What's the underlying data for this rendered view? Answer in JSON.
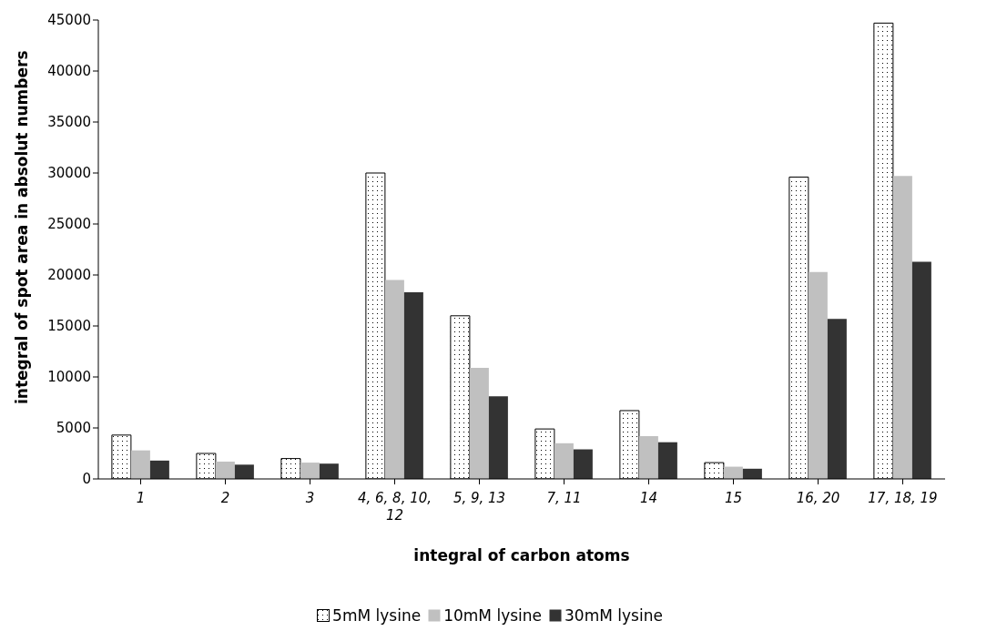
{
  "chart_data": {
    "type": "bar",
    "xlabel": "integral of carbon atoms",
    "ylabel": "integral of spot area in absolut numbers",
    "categories": [
      "1",
      "2",
      "3",
      "4, 6, 8, 10, 12",
      "5, 9, 13",
      "7, 11",
      "14",
      "15",
      "16, 20",
      "17, 18, 19"
    ],
    "series": [
      {
        "name": "5mM lysine",
        "color": "#000000",
        "values": [
          4300,
          2500,
          2000,
          30000,
          16000,
          4900,
          6700,
          1600,
          29600,
          44700
        ]
      },
      {
        "name": "10mM lysine",
        "color": "#c0c0c0",
        "values": [
          2800,
          1700,
          1600,
          19500,
          10900,
          3500,
          4200,
          1200,
          20300,
          29700
        ]
      },
      {
        "name": "30mM lysine",
        "color": "#333333",
        "values": [
          1800,
          1400,
          1500,
          18300,
          8100,
          2900,
          3600,
          1000,
          15700,
          21300
        ]
      }
    ],
    "ylim": [
      0,
      45000
    ],
    "yticks": [
      0,
      5000,
      10000,
      15000,
      20000,
      25000,
      30000,
      35000,
      40000,
      45000
    ],
    "grid": false,
    "legend": "bottom"
  }
}
